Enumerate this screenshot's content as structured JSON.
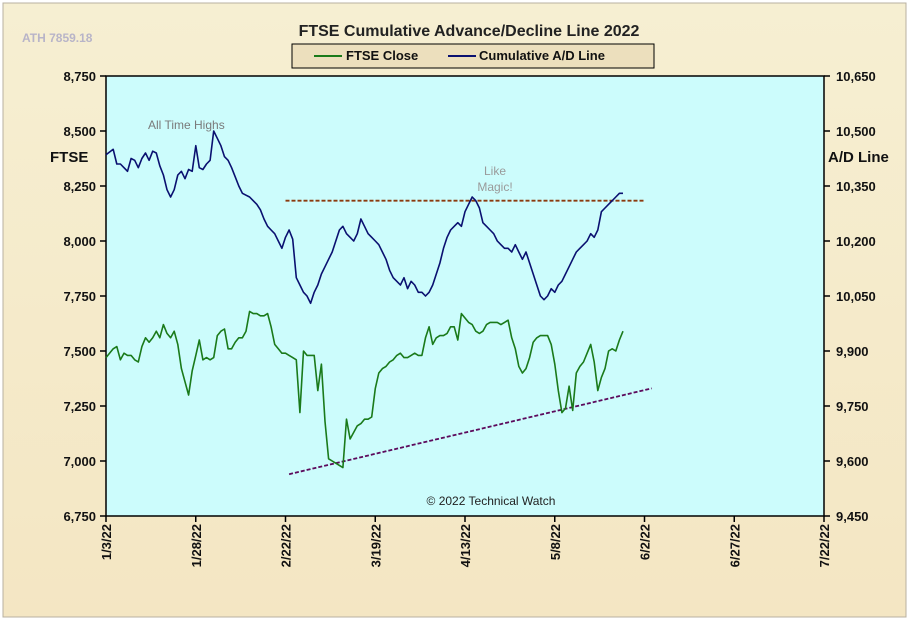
{
  "chart_data": {
    "type": "line",
    "title": "FTSE Cumulative  Advance/Decline  Line 2022",
    "corner_note": "ATH 7859.18",
    "watermark": "© 2022 Technical Watch",
    "ylabel_left": "FTSE",
    "ylabel_right": "A/D Line",
    "annotations": {
      "ath": "All Time Highs",
      "magic_line1": "Like",
      "magic_line2": "Magic!"
    },
    "legend": [
      {
        "name": "FTSE Close",
        "color": "#1a7a1a"
      },
      {
        "name": "Cumulative A/D Line",
        "color": "#0a1070"
      }
    ],
    "legend_placement": "top-center",
    "grid": false,
    "ylim_left": [
      6750,
      8750
    ],
    "yticks_left": [
      "8,750",
      "8,500",
      "8,250",
      "8,000",
      "7,750",
      "7,500",
      "7,250",
      "7,000",
      "6,750"
    ],
    "ylim_right": [
      9450,
      10650
    ],
    "yticks_right": [
      "10,650",
      "10,500",
      "10,350",
      "10,200",
      "10,050",
      "9,900",
      "9,750",
      "9,600",
      "9,450"
    ],
    "xlim_days": [
      0,
      200
    ],
    "xticks": [
      "1/3/22",
      "1/28/22",
      "2/22/22",
      "3/19/22",
      "4/13/22",
      "5/8/22",
      "6/2/22",
      "6/27/22",
      "7/22/22"
    ],
    "colors": {
      "plot_bg": "#ccfcfc",
      "frame_bg": "#f7efcd",
      "legend_bg": "#eee0bd",
      "ftse": "#1a7a1a",
      "ad": "#0a1070",
      "resistance": "#8b3a0e",
      "support": "#5c0a5c"
    },
    "series": [
      {
        "name": "FTSE Close",
        "axis": "left",
        "x": [
          0,
          2,
          3,
          4,
          5,
          6,
          7,
          8,
          9,
          10,
          11,
          12,
          13,
          14,
          15,
          16,
          17,
          18,
          19,
          20,
          21,
          22,
          23,
          24,
          25,
          26,
          27,
          28,
          29,
          30,
          31,
          32,
          33,
          34,
          35,
          36,
          37,
          38,
          39,
          40,
          41,
          42,
          43,
          44,
          45,
          46,
          47,
          48,
          49,
          50,
          51,
          52,
          53,
          54,
          55,
          56,
          57,
          58,
          59,
          60,
          61,
          62,
          63,
          64,
          65,
          66,
          67,
          68,
          69,
          70,
          71,
          72,
          73,
          74,
          75,
          76,
          77,
          78,
          79,
          80,
          81,
          82,
          83,
          84,
          85,
          86,
          87,
          88,
          89,
          90,
          91,
          92,
          93,
          94,
          95,
          96,
          97,
          98,
          99,
          100,
          101,
          102,
          103,
          104,
          105,
          106,
          107,
          108,
          109,
          110,
          111,
          112,
          113,
          114,
          115,
          116,
          117,
          118,
          119,
          120,
          121,
          122,
          123,
          124,
          125,
          126,
          127,
          128,
          129,
          130,
          131,
          132,
          133,
          134,
          135,
          136,
          137,
          138,
          139,
          140,
          141,
          142,
          143,
          144
        ],
        "values": [
          7470,
          7510,
          7520,
          7460,
          7490,
          7480,
          7480,
          7460,
          7450,
          7520,
          7560,
          7540,
          7560,
          7590,
          7560,
          7620,
          7580,
          7560,
          7590,
          7530,
          7420,
          7360,
          7300,
          7410,
          7480,
          7550,
          7460,
          7470,
          7460,
          7470,
          7570,
          7590,
          7600,
          7510,
          7510,
          7540,
          7560,
          7560,
          7590,
          7680,
          7670,
          7670,
          7660,
          7660,
          7670,
          7610,
          7530,
          7510,
          7490,
          7490,
          7480,
          7470,
          7460,
          7220,
          7500,
          7480,
          7480,
          7480,
          7320,
          7440,
          7180,
          7010,
          7000,
          6990,
          6980,
          6970,
          7190,
          7100,
          7130,
          7160,
          7170,
          7190,
          7190,
          7200,
          7330,
          7400,
          7420,
          7430,
          7450,
          7460,
          7480,
          7490,
          7470,
          7470,
          7480,
          7490,
          7480,
          7480,
          7560,
          7610,
          7530,
          7560,
          7570,
          7570,
          7580,
          7610,
          7610,
          7550,
          7670,
          7650,
          7630,
          7620,
          7590,
          7580,
          7590,
          7620,
          7630,
          7630,
          7630,
          7620,
          7630,
          7640,
          7560,
          7510,
          7430,
          7400,
          7420,
          7470,
          7540,
          7560,
          7570,
          7570,
          7570,
          7530,
          7440,
          7320,
          7220,
          7240,
          7340,
          7230,
          7400,
          7430,
          7450,
          7490,
          7530,
          7450,
          7320,
          7380,
          7420,
          7500,
          7510,
          7500,
          7550,
          7590
        ]
      },
      {
        "name": "Cumulative A/D Line",
        "axis": "right",
        "x": [
          0,
          2,
          3,
          4,
          5,
          6,
          7,
          8,
          9,
          10,
          11,
          12,
          13,
          14,
          15,
          16,
          17,
          18,
          19,
          20,
          21,
          22,
          23,
          24,
          25,
          26,
          27,
          28,
          29,
          30,
          31,
          32,
          33,
          34,
          35,
          36,
          37,
          38,
          39,
          40,
          41,
          42,
          43,
          44,
          45,
          46,
          47,
          48,
          49,
          50,
          51,
          52,
          53,
          54,
          55,
          56,
          57,
          58,
          59,
          60,
          61,
          62,
          63,
          64,
          65,
          66,
          67,
          68,
          69,
          70,
          71,
          72,
          73,
          74,
          75,
          76,
          77,
          78,
          79,
          80,
          81,
          82,
          83,
          84,
          85,
          86,
          87,
          88,
          89,
          90,
          91,
          92,
          93,
          94,
          95,
          96,
          97,
          98,
          99,
          100,
          101,
          102,
          103,
          104,
          105,
          106,
          107,
          108,
          109,
          110,
          111,
          112,
          113,
          114,
          115,
          116,
          117,
          118,
          119,
          120,
          121,
          122,
          123,
          124,
          125,
          126,
          127,
          128,
          129,
          130,
          131,
          132,
          133,
          134,
          135,
          136,
          137,
          138,
          139,
          140,
          141,
          142,
          143,
          144
        ],
        "values": [
          10435,
          10450,
          10410,
          10410,
          10400,
          10390,
          10425,
          10420,
          10400,
          10425,
          10440,
          10420,
          10445,
          10440,
          10405,
          10380,
          10340,
          10320,
          10340,
          10380,
          10390,
          10370,
          10395,
          10390,
          10460,
          10400,
          10395,
          10410,
          10420,
          10500,
          10480,
          10460,
          10430,
          10420,
          10400,
          10375,
          10350,
          10330,
          10325,
          10320,
          10310,
          10300,
          10285,
          10260,
          10240,
          10230,
          10220,
          10200,
          10180,
          10210,
          10230,
          10205,
          10100,
          10080,
          10060,
          10050,
          10030,
          10060,
          10080,
          10110,
          10130,
          10150,
          10170,
          10200,
          10230,
          10240,
          10220,
          10210,
          10200,
          10220,
          10260,
          10240,
          10220,
          10210,
          10200,
          10190,
          10170,
          10150,
          10120,
          10100,
          10090,
          10080,
          10100,
          10070,
          10090,
          10080,
          10060,
          10060,
          10050,
          10060,
          10080,
          10110,
          10140,
          10180,
          10210,
          10230,
          10240,
          10250,
          10240,
          10280,
          10300,
          10320,
          10310,
          10290,
          10250,
          10240,
          10230,
          10220,
          10200,
          10190,
          10180,
          10180,
          10170,
          10190,
          10170,
          10150,
          10170,
          10140,
          10110,
          10080,
          10050,
          10040,
          10050,
          10070,
          10060,
          10080,
          10090,
          10110,
          10130,
          10150,
          10170,
          10180,
          10190,
          10200,
          10220,
          10210,
          10230,
          10280,
          10290,
          10300,
          10310,
          10320,
          10330,
          10330
        ]
      }
    ],
    "trendlines": [
      {
        "name": "resistance",
        "axis": "right",
        "x": [
          50,
          150
        ],
        "values": [
          10310,
          10310
        ]
      },
      {
        "name": "support",
        "axis": "left",
        "x": [
          51,
          152
        ],
        "values": [
          6940,
          7330
        ]
      }
    ]
  }
}
